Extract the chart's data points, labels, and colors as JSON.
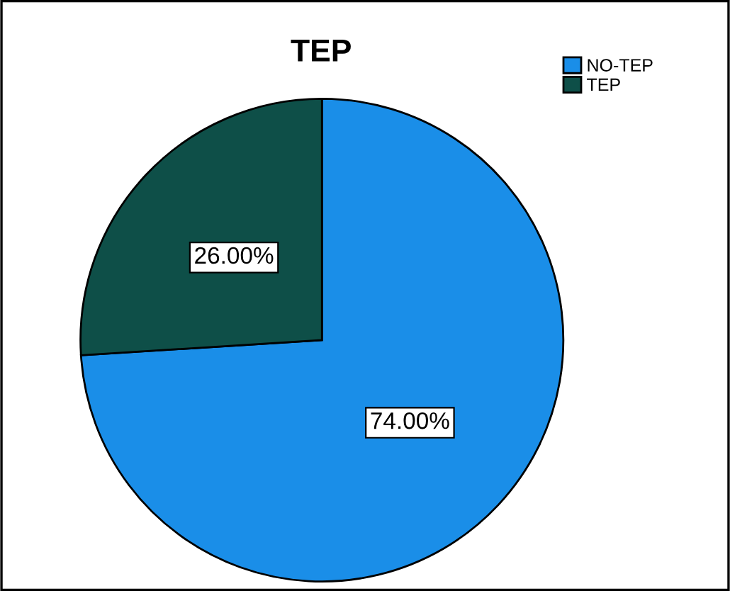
{
  "chart_data": {
    "type": "pie",
    "title": "TEP",
    "categories": [
      "NO-TEP",
      "TEP"
    ],
    "values": [
      74,
      26
    ],
    "colors": [
      "#1a8ee8",
      "#0e4f48"
    ],
    "value_labels": [
      "74.00%",
      "26.00%"
    ],
    "legend": "top right"
  }
}
